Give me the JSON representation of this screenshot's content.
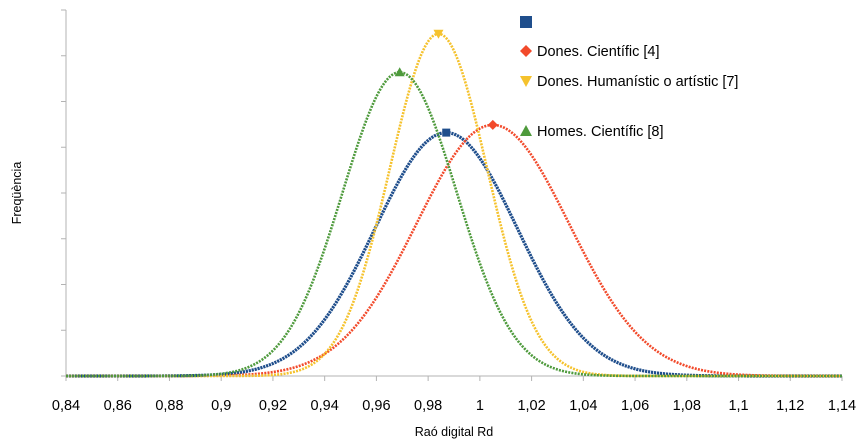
{
  "chart_data": {
    "type": "line",
    "xlabel": "Raó digital Rd",
    "ylabel": "Freqüència",
    "xlim": [
      0.84,
      1.14
    ],
    "x_ticks": [
      "0,84",
      "0,86",
      "0,88",
      "0,9",
      "0,92",
      "0,94",
      "0,96",
      "0,98",
      "1",
      "1,02",
      "1,04",
      "1,06",
      "1,08",
      "1,1",
      "1,12",
      "1,14"
    ],
    "y_tick_labels_shown": false,
    "grid": false,
    "legend_position": "top-right",
    "series": [
      {
        "name": "",
        "marker": "square",
        "color": "#1f4e8c",
        "mean": 0.987,
        "sd": 0.0275,
        "peak": 0.665
      },
      {
        "name": "Dones. Científic [4]",
        "marker": "diamond",
        "color": "#f24a2b",
        "mean": 1.005,
        "sd": 0.0295,
        "peak": 0.686
      },
      {
        "name": "Dones. Humanístic o artístic [7]",
        "marker": "triangle-down",
        "color": "#f5c22d",
        "mean": 0.984,
        "sd": 0.0188,
        "peak": 0.935
      },
      {
        "name": "Homes. Científic  [8]",
        "marker": "triangle-up",
        "color": "#4e9a3c",
        "mean": 0.969,
        "sd": 0.022,
        "peak": 0.83
      }
    ]
  }
}
